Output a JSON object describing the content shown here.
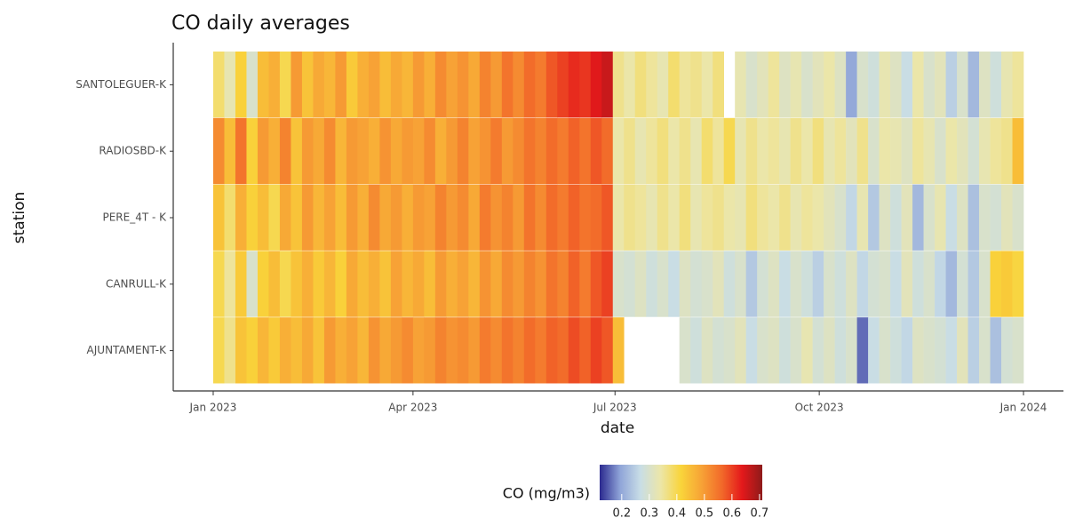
{
  "chart_data": {
    "type": "heatmap",
    "title": "CO daily averages",
    "xlabel": "date",
    "ylabel": "station",
    "x": [
      0,
      5,
      10,
      15,
      20,
      25,
      30,
      35,
      40,
      45,
      50,
      55,
      60,
      65,
      70,
      75,
      80,
      85,
      90,
      95,
      100,
      105,
      110,
      115,
      120,
      125,
      130,
      135,
      140,
      145,
      150,
      155,
      160,
      165,
      170,
      175,
      180,
      185,
      190,
      195,
      200,
      205,
      210,
      215,
      220,
      225,
      230,
      235,
      240,
      245,
      250,
      255,
      260,
      265,
      270,
      275,
      280,
      285,
      290,
      295,
      300,
      305,
      310,
      315,
      320,
      325,
      330,
      335,
      340,
      345,
      350,
      355,
      360
    ],
    "xlim": [
      -18,
      383
    ],
    "xticks": [
      {
        "value": 0,
        "label": "Jan 2023"
      },
      {
        "value": 90,
        "label": "Apr 2023"
      },
      {
        "value": 181,
        "label": "Jul 2023"
      },
      {
        "value": 273,
        "label": "Oct 2023"
      },
      {
        "value": 365,
        "label": "Jan 2024"
      }
    ],
    "series": [
      {
        "name": "AJUNTAMENT-K",
        "values": [
          0.4,
          0.36,
          0.44,
          0.42,
          0.46,
          0.43,
          0.47,
          0.45,
          0.48,
          0.44,
          0.5,
          0.47,
          0.49,
          0.46,
          0.51,
          0.48,
          0.5,
          0.52,
          0.49,
          0.5,
          0.53,
          0.51,
          0.52,
          0.5,
          0.54,
          0.52,
          0.55,
          0.53,
          0.56,
          0.54,
          0.57,
          0.56,
          0.59,
          0.57,
          0.6,
          0.58,
          0.45,
          null,
          null,
          null,
          null,
          null,
          0.3,
          0.28,
          0.31,
          0.29,
          0.3,
          0.32,
          0.27,
          0.3,
          0.31,
          0.28,
          0.3,
          0.33,
          0.29,
          0.31,
          0.28,
          0.3,
          0.16,
          0.27,
          0.3,
          0.28,
          0.26,
          0.31,
          0.3,
          0.29,
          0.27,
          0.32,
          0.25,
          0.3,
          0.23,
          0.29,
          0.3
        ]
      },
      {
        "name": "CANRULL-K",
        "values": [
          0.4,
          0.35,
          0.43,
          0.3,
          0.42,
          0.45,
          0.4,
          0.44,
          0.47,
          0.43,
          0.46,
          0.42,
          0.48,
          0.45,
          0.47,
          0.44,
          0.49,
          0.46,
          0.48,
          0.45,
          0.5,
          0.47,
          0.49,
          0.46,
          0.51,
          0.48,
          0.52,
          0.5,
          0.53,
          0.51,
          0.55,
          0.53,
          0.57,
          0.54,
          0.58,
          0.6,
          0.3,
          0.29,
          0.31,
          0.28,
          0.3,
          0.27,
          0.31,
          0.29,
          0.3,
          0.32,
          0.28,
          0.3,
          0.24,
          0.29,
          0.31,
          0.27,
          0.3,
          0.28,
          0.25,
          0.3,
          0.28,
          0.31,
          0.26,
          0.29,
          0.3,
          0.27,
          0.32,
          0.28,
          0.3,
          0.26,
          0.22,
          0.29,
          0.24,
          0.3,
          0.42,
          0.43,
          0.41
        ]
      },
      {
        "name": "PERE_4T - K",
        "values": [
          0.44,
          0.38,
          0.47,
          0.42,
          0.45,
          0.4,
          0.48,
          0.44,
          0.5,
          0.46,
          0.49,
          0.45,
          0.5,
          0.47,
          0.52,
          0.48,
          0.5,
          0.47,
          0.5,
          0.49,
          0.53,
          0.5,
          0.52,
          0.48,
          0.54,
          0.51,
          0.53,
          0.5,
          0.55,
          0.52,
          0.56,
          0.54,
          0.57,
          0.55,
          0.56,
          0.58,
          0.34,
          0.36,
          0.35,
          0.33,
          0.36,
          0.34,
          0.37,
          0.33,
          0.35,
          0.36,
          0.34,
          0.33,
          0.37,
          0.35,
          0.34,
          0.36,
          0.33,
          0.35,
          0.34,
          0.32,
          0.3,
          0.26,
          0.33,
          0.24,
          0.31,
          0.28,
          0.32,
          0.22,
          0.3,
          0.33,
          0.27,
          0.31,
          0.23,
          0.3,
          0.29,
          0.32,
          0.3
        ]
      },
      {
        "name": "RADIOSBD-K",
        "values": [
          0.52,
          0.45,
          0.55,
          0.42,
          0.5,
          0.47,
          0.53,
          0.44,
          0.5,
          0.48,
          0.52,
          0.46,
          0.5,
          0.49,
          0.47,
          0.51,
          0.48,
          0.5,
          0.49,
          0.52,
          0.47,
          0.5,
          0.53,
          0.49,
          0.51,
          0.54,
          0.5,
          0.52,
          0.55,
          0.53,
          0.56,
          0.54,
          0.57,
          0.55,
          0.58,
          0.56,
          0.34,
          0.36,
          0.33,
          0.35,
          0.37,
          0.34,
          0.36,
          0.33,
          0.38,
          0.35,
          0.4,
          0.33,
          0.36,
          0.34,
          0.35,
          0.33,
          0.36,
          0.34,
          0.37,
          0.33,
          0.35,
          0.32,
          0.36,
          0.3,
          0.34,
          0.33,
          0.31,
          0.35,
          0.33,
          0.3,
          0.34,
          0.32,
          0.29,
          0.33,
          0.35,
          0.36,
          0.45
        ]
      },
      {
        "name": "SANTOLEGUER-K",
        "values": [
          0.38,
          0.33,
          0.42,
          0.3,
          0.45,
          0.47,
          0.4,
          0.5,
          0.44,
          0.48,
          0.46,
          0.5,
          0.43,
          0.47,
          0.49,
          0.45,
          0.48,
          0.46,
          0.5,
          0.47,
          0.52,
          0.49,
          0.51,
          0.48,
          0.53,
          0.5,
          0.55,
          0.52,
          0.56,
          0.54,
          0.58,
          0.6,
          0.62,
          0.61,
          0.64,
          0.66,
          0.36,
          0.34,
          0.37,
          0.35,
          0.33,
          0.38,
          0.35,
          0.36,
          0.34,
          0.37,
          null,
          0.33,
          0.3,
          0.32,
          0.35,
          0.31,
          0.33,
          0.3,
          0.32,
          0.34,
          0.31,
          0.2,
          0.3,
          0.28,
          0.33,
          0.31,
          0.27,
          0.34,
          0.3,
          0.32,
          0.25,
          0.3,
          0.22,
          0.31,
          0.28,
          0.33,
          0.35
        ]
      }
    ],
    "colorbar": {
      "title": "CO (mg/m3)",
      "lim": [
        0.12,
        0.71
      ],
      "ticks": [
        0.2,
        0.3,
        0.4,
        0.5,
        0.6,
        0.7
      ],
      "colors": [
        "#2b2a8f",
        "#8fa4d8",
        "#c8dde6",
        "#ece6a8",
        "#f9d43a",
        "#f7a336",
        "#f26a2a",
        "#e4191b",
        "#8e1a1a"
      ]
    }
  }
}
